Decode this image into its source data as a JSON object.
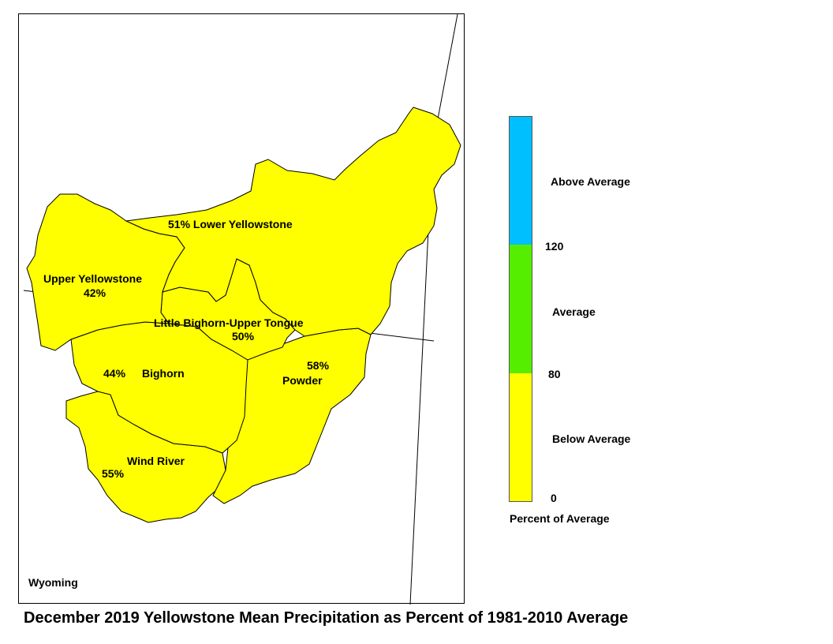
{
  "map": {
    "state_label": "Wyoming",
    "fill_color": "#ffff00",
    "basins": [
      {
        "name": "Lower Yellowstone",
        "percent_label": "51%",
        "percent": 51,
        "category": "Below Average"
      },
      {
        "name": "Upper Yellowstone",
        "percent_label": "42%",
        "percent": 42,
        "category": "Below Average"
      },
      {
        "name": "Little Bighorn-Upper Tongue",
        "percent_label": "50%",
        "percent": 50,
        "category": "Below Average"
      },
      {
        "name": "Bighorn",
        "percent_label": "44%",
        "percent": 44,
        "category": "Below Average"
      },
      {
        "name": "Powder",
        "percent_label": "58%",
        "percent": 58,
        "category": "Below Average"
      },
      {
        "name": "Wind River",
        "percent_label": "55%",
        "percent": 55,
        "category": "Below Average"
      }
    ]
  },
  "legend": {
    "title": "Percent of Average",
    "categories": [
      {
        "label": "Above Average",
        "color": "#00bfff"
      },
      {
        "label": "Average",
        "color": "#55ee00"
      },
      {
        "label": "Below Average",
        "color": "#ffff00"
      }
    ],
    "ticks": [
      "120",
      "80",
      "0"
    ]
  },
  "caption": "December 2019 Yellowstone Mean Precipitation as Percent of 1981-2010 Average"
}
